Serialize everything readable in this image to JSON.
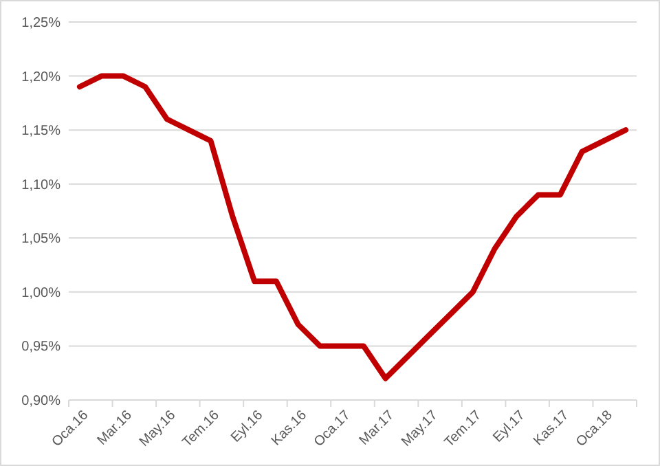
{
  "chart_data": {
    "type": "line",
    "categories": [
      "Oca.16",
      null,
      "Mar.16",
      null,
      "May.16",
      null,
      "Tem.16",
      null,
      "Eyl.16",
      null,
      "Kas.16",
      null,
      "Oca.17",
      null,
      "Mar.17",
      null,
      "May.17",
      null,
      "Tem.17",
      null,
      "Eyl.17",
      null,
      "Kas.17",
      null,
      "Oca.18",
      null
    ],
    "series": [
      {
        "color": "#c00000",
        "values": [
          1.19,
          1.2,
          1.2,
          1.19,
          1.16,
          1.15,
          1.14,
          1.07,
          1.01,
          1.01,
          0.97,
          0.95,
          0.95,
          0.95,
          0.92,
          0.94,
          0.96,
          0.98,
          1.0,
          1.04,
          1.07,
          1.09,
          1.09,
          1.13,
          1.14,
          1.15
        ]
      }
    ],
    "ylim": [
      0.9,
      1.25
    ],
    "yticks": [
      {
        "value": 0.9,
        "label": "0,90%"
      },
      {
        "value": 0.95,
        "label": "0,95%"
      },
      {
        "value": 1.0,
        "label": "1,00%"
      },
      {
        "value": 1.05,
        "label": "1,05%"
      },
      {
        "value": 1.1,
        "label": "1,10%"
      },
      {
        "value": 1.15,
        "label": "1,15%"
      },
      {
        "value": 1.2,
        "label": "1,20%"
      },
      {
        "value": 1.25,
        "label": "1,25%"
      }
    ],
    "grid": "y",
    "marker": "none",
    "line_style": "solid"
  }
}
